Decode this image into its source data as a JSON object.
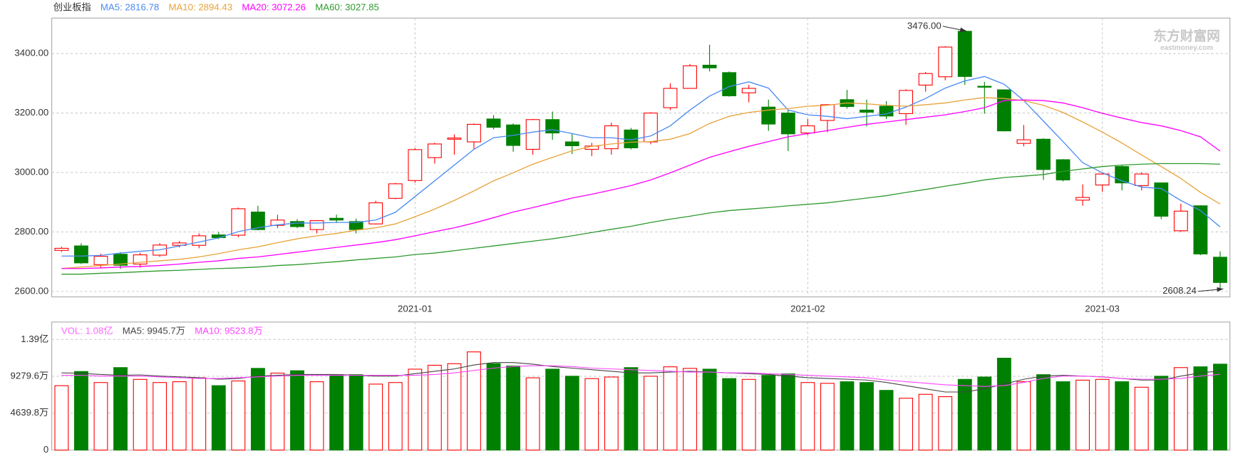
{
  "chart_data": [
    {
      "type": "candlestick",
      "title": "创业板指",
      "categories": [
        null,
        null,
        null,
        null,
        null,
        null,
        null,
        null,
        null,
        null,
        null,
        null,
        null,
        null,
        null,
        null,
        null,
        null,
        "2021-01",
        null,
        null,
        null,
        null,
        null,
        null,
        null,
        null,
        null,
        null,
        null,
        null,
        null,
        null,
        null,
        null,
        null,
        null,
        null,
        "2021-02",
        null,
        null,
        null,
        null,
        null,
        null,
        null,
        null,
        null,
        null,
        null,
        null,
        null,
        null,
        "2021-03",
        null,
        null,
        null,
        null,
        null,
        null
      ],
      "open": [
        2738,
        2753,
        2690,
        2725,
        2692,
        2722,
        2755,
        2755,
        2790,
        2789,
        2867,
        2822,
        2835,
        2808,
        2846,
        2835,
        2827,
        2913,
        2973,
        3050,
        3112,
        3103,
        3180,
        3160,
        3078,
        3178,
        3103,
        3078,
        3080,
        3143,
        3103,
        3218,
        3283,
        3361,
        3336,
        3268,
        3220,
        3200,
        3133,
        3175,
        3245,
        3210,
        3223,
        3198,
        3294,
        3322,
        3475,
        3290,
        3278,
        3098,
        3112,
        3043,
        2907,
        2958,
        3020,
        2956,
        2965,
        2804,
        2888,
        2715
      ],
      "high": [
        2750,
        2762,
        2727,
        2732,
        2730,
        2762,
        2770,
        2795,
        2800,
        2882,
        2888,
        2858,
        2843,
        2840,
        2858,
        2845,
        2905,
        2965,
        3082,
        3100,
        3128,
        3165,
        3193,
        3165,
        3180,
        3205,
        3130,
        3100,
        3168,
        3150,
        3203,
        3300,
        3365,
        3430,
        3340,
        3295,
        3245,
        3210,
        3180,
        3230,
        3278,
        3245,
        3240,
        3280,
        3338,
        3425,
        3476,
        3305,
        3280,
        3160,
        3115,
        3045,
        2960,
        3000,
        3025,
        3000,
        2966,
        2895,
        2890,
        2735
      ],
      "low": [
        2733,
        2692,
        2680,
        2676,
        2680,
        2716,
        2748,
        2745,
        2776,
        2782,
        2805,
        2813,
        2813,
        2795,
        2830,
        2795,
        2825,
        2910,
        2966,
        3030,
        3060,
        3080,
        3145,
        3070,
        3060,
        3110,
        3062,
        3055,
        3060,
        3078,
        3095,
        3210,
        3283,
        3340,
        3255,
        3236,
        3140,
        3072,
        3125,
        3135,
        3215,
        3155,
        3180,
        3160,
        3272,
        3310,
        3295,
        3198,
        3138,
        3088,
        2975,
        2970,
        2888,
        2935,
        2940,
        2940,
        2843,
        2800,
        2722,
        2608.24
      ],
      "close": [
        2745,
        2696,
        2718,
        2688,
        2723,
        2756,
        2763,
        2787,
        2781,
        2878,
        2808,
        2840,
        2818,
        2838,
        2840,
        2808,
        2898,
        2962,
        3077,
        3096,
        3116,
        3162,
        3152,
        3091,
        3178,
        3133,
        3090,
        3089,
        3157,
        3083,
        3200,
        3283,
        3359,
        3352,
        3258,
        3283,
        3163,
        3130,
        3157,
        3228,
        3222,
        3203,
        3190,
        3276,
        3333,
        3422,
        3323,
        3287,
        3140,
        3110,
        3010,
        2975,
        2916,
        2995,
        2965,
        2995,
        2853,
        2870,
        2726,
        2630
      ],
      "up_color": "#ff0000",
      "down_color": "#008000",
      "series": [
        {
          "name": "MA5: 2816.78",
          "color": "#4a8af4",
          "values": [
            2719,
            2719,
            2721,
            2729,
            2735,
            2740,
            2753,
            2766,
            2780,
            2801,
            2814,
            2824,
            2830,
            2830,
            2832,
            2832,
            2840,
            2866,
            2919,
            2972,
            3025,
            3078,
            3117,
            3125,
            3136,
            3144,
            3131,
            3117,
            3117,
            3110,
            3123,
            3157,
            3210,
            3257,
            3289,
            3305,
            3284,
            3210,
            3194,
            3189,
            3181,
            3189,
            3197,
            3220,
            3249,
            3284,
            3308,
            3323,
            3297,
            3242,
            3173,
            3104,
            3033,
            2999,
            2972,
            2951,
            2946,
            2906,
            2872,
            2817
          ]
        },
        {
          "name": "MA10: 2894.43",
          "color": "#e8a33a",
          "values": [
            2677,
            2682,
            2687,
            2692,
            2698,
            2703,
            2708,
            2716,
            2727,
            2740,
            2750,
            2764,
            2777,
            2787,
            2795,
            2806,
            2814,
            2827,
            2851,
            2877,
            2906,
            2938,
            2972,
            2999,
            3028,
            3051,
            3073,
            3088,
            3096,
            3102,
            3104,
            3112,
            3131,
            3165,
            3189,
            3202,
            3210,
            3215,
            3223,
            3226,
            3234,
            3231,
            3226,
            3223,
            3228,
            3234,
            3244,
            3252,
            3249,
            3242,
            3226,
            3202,
            3170,
            3136,
            3099,
            3059,
            3020,
            2980,
            2933,
            2894
          ]
        },
        {
          "name": "MA20: 3072.26",
          "color": "#ff00ff",
          "values": [
            2677,
            2677,
            2679,
            2682,
            2684,
            2687,
            2692,
            2698,
            2703,
            2711,
            2716,
            2724,
            2732,
            2740,
            2748,
            2756,
            2764,
            2774,
            2787,
            2801,
            2814,
            2830,
            2848,
            2867,
            2882,
            2898,
            2914,
            2927,
            2941,
            2956,
            2975,
            2999,
            3025,
            3051,
            3070,
            3088,
            3104,
            3120,
            3131,
            3141,
            3152,
            3162,
            3170,
            3178,
            3186,
            3194,
            3205,
            3218,
            3242,
            3244,
            3242,
            3234,
            3218,
            3199,
            3183,
            3168,
            3157,
            3141,
            3120,
            3072
          ]
        },
        {
          "name": "MA60: 3027.85",
          "color": "#2e9a2e",
          "values": [
            2658,
            2658,
            2661,
            2663,
            2666,
            2669,
            2671,
            2674,
            2677,
            2679,
            2682,
            2687,
            2690,
            2695,
            2700,
            2706,
            2711,
            2716,
            2724,
            2729,
            2737,
            2745,
            2753,
            2761,
            2769,
            2777,
            2787,
            2798,
            2809,
            2819,
            2832,
            2843,
            2853,
            2864,
            2872,
            2877,
            2882,
            2888,
            2893,
            2898,
            2906,
            2914,
            2922,
            2933,
            2943,
            2954,
            2964,
            2975,
            2983,
            2988,
            2993,
            3004,
            3012,
            3020,
            3025,
            3028,
            3030,
            3030,
            3030,
            3028
          ]
        }
      ],
      "ylim": [
        2581.5,
        3519.5
      ],
      "yticks": [
        {
          "value": 2600,
          "label": "2600.00"
        },
        {
          "value": 2800,
          "label": "2800.00"
        },
        {
          "value": 3000,
          "label": "3000.00"
        },
        {
          "value": 3200,
          "label": "3200.00"
        },
        {
          "value": 3400,
          "label": "3400.00"
        }
      ],
      "grid": true,
      "annotations": [
        {
          "value": 3476,
          "label": "3476.00"
        },
        {
          "value": 2608.24,
          "label": "2608.24"
        }
      ],
      "watermark": [
        "东方财富网",
        "eastmoney.com"
      ]
    },
    {
      "type": "bar",
      "series": [
        {
          "name": "VOL: 1.08亿",
          "color": "#ff66ff",
          "values": [
            8095,
            9872,
            8490,
            10366,
            8885,
            8490,
            8589,
            9082,
            8095,
            8687,
            10267,
            9675,
            9971,
            8589,
            9477,
            9477,
            8292,
            8490,
            10168,
            10662,
            10859,
            12340,
            10859,
            10563,
            9082,
            10168,
            9280,
            8984,
            9181,
            10366,
            9280,
            10464,
            10267,
            10168,
            8984,
            8885,
            9378,
            9576,
            8490,
            8391,
            8589,
            8490,
            7503,
            6516,
            7009,
            6713,
            8885,
            9181,
            11550,
            8589,
            9477,
            8589,
            8786,
            8885,
            8589,
            7898,
            9280,
            10366,
            10464,
            10800
          ]
        },
        {
          "name": "MA5: 9945.7万",
          "color": "#444444",
          "values": [
            9700,
            9650,
            9500,
            9400,
            9450,
            9300,
            9200,
            9100,
            8900,
            9000,
            9300,
            9400,
            9500,
            9500,
            9500,
            9400,
            9300,
            9300,
            9600,
            9900,
            10200,
            10700,
            11000,
            11000,
            10800,
            10500,
            10300,
            10100,
            9900,
            9700,
            9700,
            9800,
            9900,
            9800,
            9700,
            9600,
            9500,
            9300,
            9100,
            9000,
            8900,
            8800,
            8500,
            8100,
            7700,
            7300,
            7300,
            7700,
            8300,
            8900,
            9300,
            9400,
            9300,
            9200,
            9000,
            8800,
            8800,
            9300,
            9700,
            9945.7
          ]
        },
        {
          "name": "MA10: 9523.8万",
          "color": "#ff44ff",
          "values": [
            9400,
            9400,
            9300,
            9300,
            9300,
            9200,
            9100,
            9000,
            9000,
            9100,
            9200,
            9300,
            9400,
            9400,
            9400,
            9400,
            9400,
            9400,
            9400,
            9500,
            9700,
            10000,
            10300,
            10500,
            10600,
            10600,
            10500,
            10300,
            10200,
            10100,
            10000,
            9900,
            9800,
            9800,
            9700,
            9700,
            9600,
            9500,
            9400,
            9300,
            9200,
            9100,
            8800,
            8600,
            8400,
            8200,
            8100,
            8000,
            8100,
            8500,
            9000,
            9300,
            9300,
            9200,
            9000,
            8900,
            8900,
            9000,
            9300,
            9523.8
          ]
        }
      ],
      "ylim": [
        0,
        16091
      ],
      "yticks": [
        0,
        {
          "value": 4639.8,
          "label": "4639.8万"
        },
        {
          "value": 9279.6,
          "label": "9279.6万"
        },
        {
          "value": 13900,
          "label": "1.39亿"
        }
      ],
      "grid": true
    }
  ]
}
